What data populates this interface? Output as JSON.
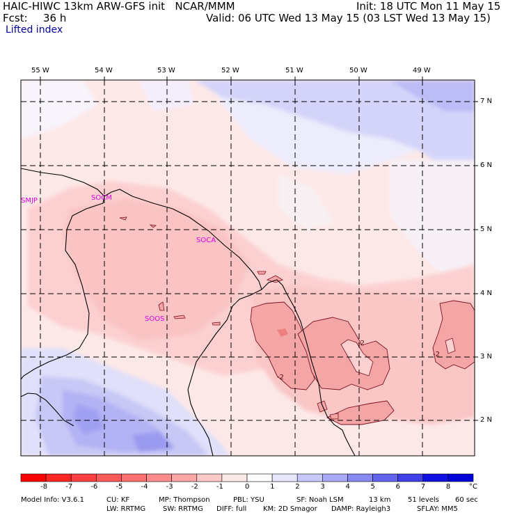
{
  "header": {
    "model_line": "HAIC-HIWC 13km ARW-GFS init   NCAR/MMM",
    "fcst_label": "Fcst:",
    "fcst_value": "36 h",
    "init": "Init: 18 UTC Mon 11 May 15",
    "valid": "Valid: 06 UTC Wed 13 May 15 (03 LST Wed 13 May 15)",
    "field_name": "Lifted index"
  },
  "map": {
    "longitude_labels": [
      "55 W",
      "54 W",
      "53 W",
      "52 W",
      "51 W",
      "50 W",
      "49 W"
    ],
    "latitude_labels": [
      "7 N",
      "6 N",
      "5 N",
      "4 N",
      "3 N",
      "2 N"
    ],
    "station_labels": [
      "SMJP",
      "SOCM",
      "SOCA",
      "SOOS"
    ],
    "contour_labels": [
      "-2",
      "-2",
      "-2"
    ],
    "station_color": "#e000e0"
  },
  "colorbar": {
    "tick_labels": [
      "-8",
      "-7",
      "-6",
      "-5",
      "-4",
      "-3",
      "-2",
      "-1",
      "0",
      "1",
      "2",
      "3",
      "4",
      "5",
      "6",
      "7",
      "8"
    ],
    "unit": "°C",
    "colors": [
      "#ff0000",
      "#ff2626",
      "#ff4040",
      "#ff5a5a",
      "#ff7070",
      "#ff8c8c",
      "#fda6a6",
      "#fcc8c8",
      "#fde8e8",
      "#ffffff",
      "#e6e6fc",
      "#c8c8fa",
      "#a8a8f6",
      "#8888f2",
      "#6464ee",
      "#4040e8",
      "#1010e0",
      "#0000d8"
    ]
  },
  "footer": {
    "model_info": "Model Info: V3.6.1",
    "cu": "CU: KF",
    "mp": "MP: Thompson",
    "pbl": "PBL: YSU",
    "sf": "SF: Noah LSM",
    "res": "13 km",
    "levels": "51 levels",
    "dt": "60 sec",
    "lw": "LW: RRTMG",
    "sw": "SW: RRTMG",
    "diff": "DIFF: full",
    "km": "KM: 2D Smagor",
    "damp": "DAMP: Rayleigh3",
    "sflay": "SFLAY: MM5"
  }
}
